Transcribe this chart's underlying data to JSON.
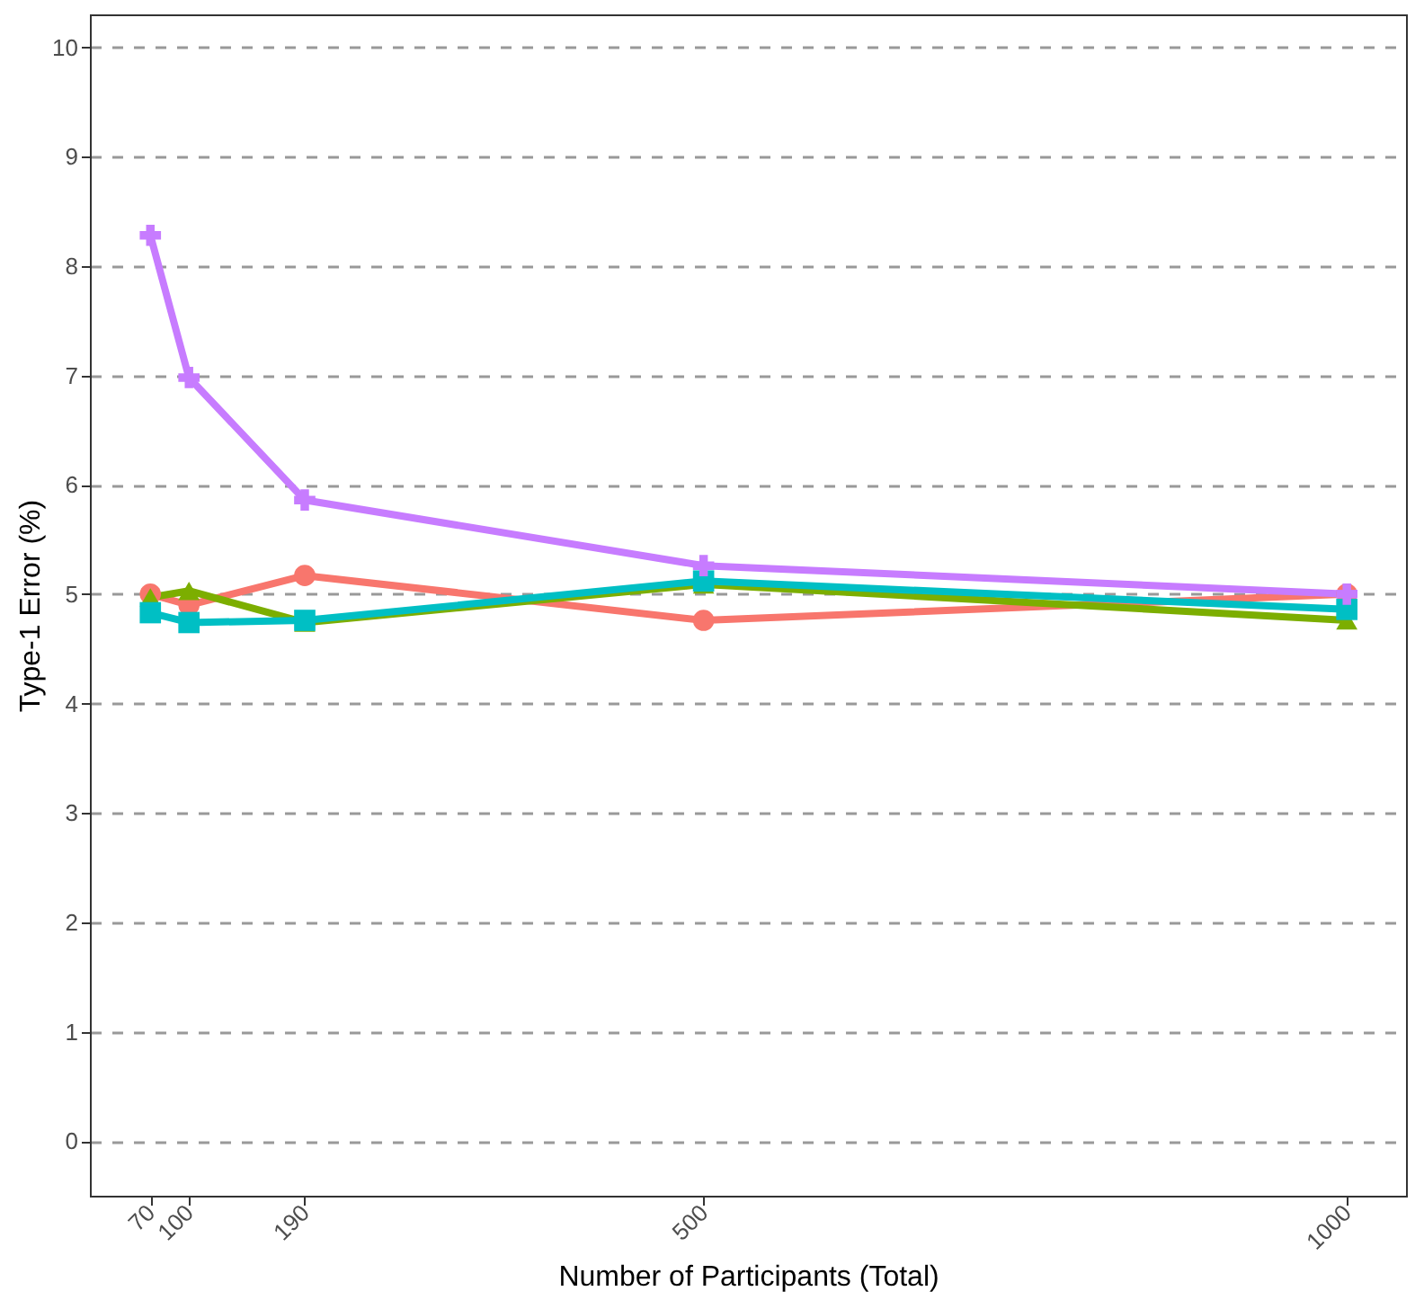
{
  "chart_data": {
    "type": "line",
    "xlabel": "Number of Participants (Total)",
    "ylabel": "Type-1 Error (%)",
    "x": [
      70,
      100,
      190,
      500,
      1000
    ],
    "series": [
      {
        "color": "#f8766d",
        "marker": "circle",
        "values": [
          5.0,
          4.9,
          5.17,
          4.76,
          5.0
        ]
      },
      {
        "color": "#7cae00",
        "marker": "triangle",
        "values": [
          4.97,
          5.03,
          4.74,
          5.09,
          4.76
        ]
      },
      {
        "color": "#00bfc4",
        "marker": "square",
        "values": [
          4.83,
          4.74,
          4.76,
          5.12,
          4.86
        ]
      },
      {
        "color": "#c77cff",
        "marker": "cross",
        "values": [
          8.28,
          6.98,
          5.86,
          5.26,
          5.0
        ]
      }
    ],
    "xlim": [
      23,
      1046
    ],
    "xticks": [
      70,
      100,
      190,
      500,
      1000
    ],
    "ylim": [
      -0.5,
      10.3
    ],
    "yticks": [
      0,
      1,
      2,
      3,
      4,
      5,
      6,
      7,
      8,
      9,
      10
    ],
    "grid": "y",
    "line_style": "solid",
    "legend": false
  }
}
